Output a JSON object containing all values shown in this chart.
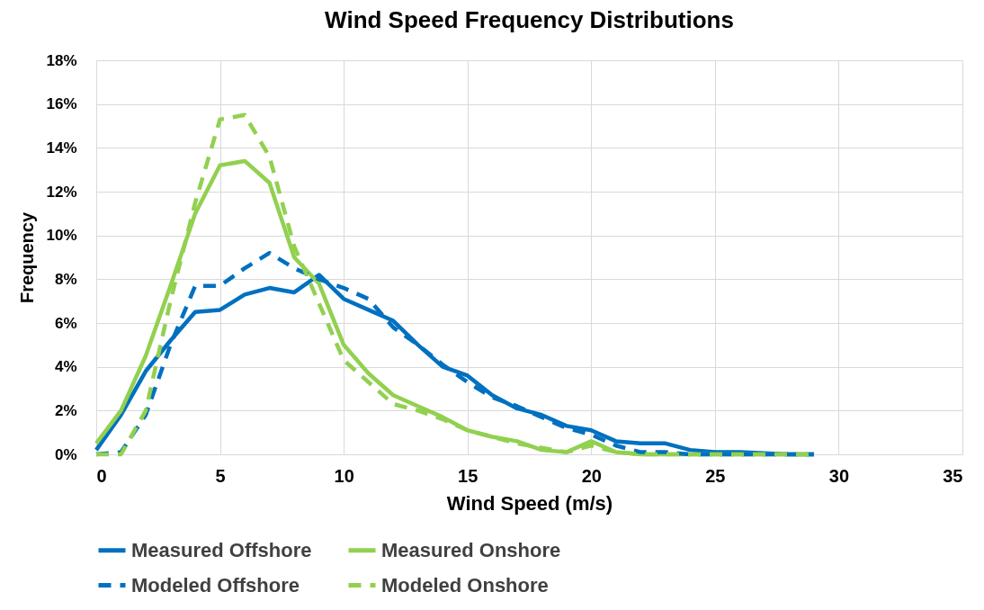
{
  "chart_data": {
    "type": "line",
    "title": "Wind Speed Frequency Distributions",
    "xlabel": "Wind Speed (m/s)",
    "ylabel": "Frequency",
    "x": [
      0,
      1,
      2,
      3,
      4,
      5,
      6,
      7,
      8,
      9,
      10,
      11,
      12,
      13,
      14,
      15,
      16,
      17,
      18,
      19,
      20,
      21,
      22,
      23,
      24,
      25,
      26,
      27,
      28,
      29
    ],
    "series": [
      {
        "name": "Measured Offshore",
        "color": "#0070c0",
        "line_style": "solid",
        "values": [
          0.2,
          1.8,
          3.8,
          5.2,
          6.5,
          6.6,
          7.3,
          7.6,
          7.4,
          8.2,
          7.1,
          6.6,
          6.1,
          5.0,
          4.0,
          3.6,
          2.7,
          2.1,
          1.8,
          1.3,
          1.1,
          0.6,
          0.5,
          0.5,
          0.2,
          0.1,
          0.1,
          0.05,
          0,
          0
        ]
      },
      {
        "name": "Measured Onshore",
        "color": "#92d050",
        "line_style": "solid",
        "values": [
          0.5,
          2.0,
          4.5,
          7.7,
          11.0,
          13.2,
          13.4,
          12.4,
          9.0,
          7.8,
          5.0,
          3.7,
          2.7,
          2.2,
          1.7,
          1.1,
          0.8,
          0.6,
          0.2,
          0.1,
          0.6,
          0.1,
          0,
          0,
          0,
          0,
          0,
          0,
          0,
          0
        ]
      },
      {
        "name": "Modeled Offshore",
        "color": "#0070c0",
        "line_style": "dashed",
        "values": [
          0,
          0.1,
          1.8,
          5.0,
          7.7,
          7.7,
          8.5,
          9.2,
          8.5,
          8.0,
          7.6,
          7.1,
          5.8,
          5.0,
          4.1,
          3.3,
          2.6,
          2.2,
          1.7,
          1.2,
          0.9,
          0.4,
          0.1,
          0.1,
          0,
          0,
          0,
          0,
          0,
          0
        ]
      },
      {
        "name": "Modeled Onshore",
        "color": "#92d050",
        "line_style": "dashed",
        "values": [
          0,
          0,
          2.0,
          7.0,
          11.5,
          15.3,
          15.5,
          13.6,
          9.5,
          6.9,
          4.3,
          3.3,
          2.3,
          2.0,
          1.6,
          1.1,
          0.8,
          0.5,
          0.3,
          0.1,
          0.4,
          0.1,
          0,
          0,
          0,
          0,
          0,
          0,
          0,
          0
        ]
      }
    ],
    "xlim": [
      0,
      35
    ],
    "xticks": [
      0,
      5,
      10,
      15,
      20,
      25,
      30,
      35
    ],
    "ylim": [
      0,
      18
    ],
    "yticks": [
      {
        "value": 0,
        "label": "0%"
      },
      {
        "value": 2,
        "label": "2%"
      },
      {
        "value": 4,
        "label": "4%"
      },
      {
        "value": 6,
        "label": "6%"
      },
      {
        "value": 8,
        "label": "8%"
      },
      {
        "value": 10,
        "label": "10%"
      },
      {
        "value": 12,
        "label": "12%"
      },
      {
        "value": 14,
        "label": "14%"
      },
      {
        "value": 16,
        "label": "16%"
      },
      {
        "value": 18,
        "label": "18%"
      }
    ],
    "grid": true,
    "legend": "bottom",
    "marker": "none"
  }
}
